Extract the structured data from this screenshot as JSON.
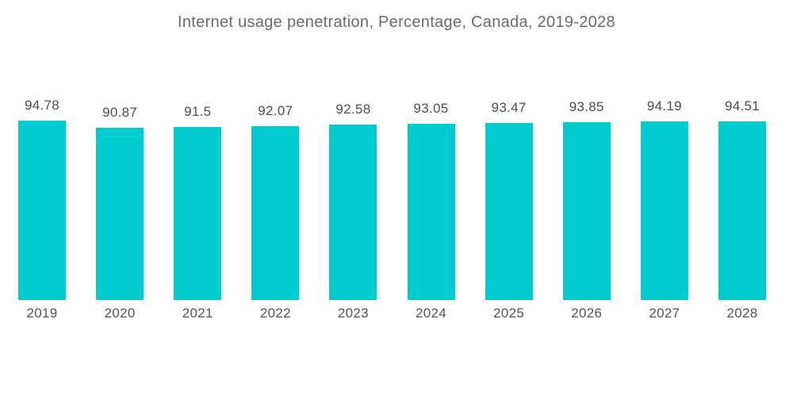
{
  "chart_data": {
    "type": "bar",
    "title": "Internet usage penetration, Percentage, Canada, 2019-2028",
    "categories": [
      "2019",
      "2020",
      "2021",
      "2022",
      "2023",
      "2024",
      "2025",
      "2026",
      "2027",
      "2028"
    ],
    "values": [
      94.78,
      90.87,
      91.5,
      92.07,
      92.58,
      93.05,
      93.47,
      93.85,
      94.19,
      94.51
    ],
    "xlabel": "",
    "ylabel": "",
    "ylim": [
      0,
      100
    ],
    "grid": false,
    "legend": "none",
    "value_labels_shown": true,
    "colors": {
      "bar": "#00CBCE",
      "value_label": "#4E4E4E",
      "axis_label": "#555555",
      "title": "#6B6B6B",
      "background": "#FFFFFF"
    }
  }
}
